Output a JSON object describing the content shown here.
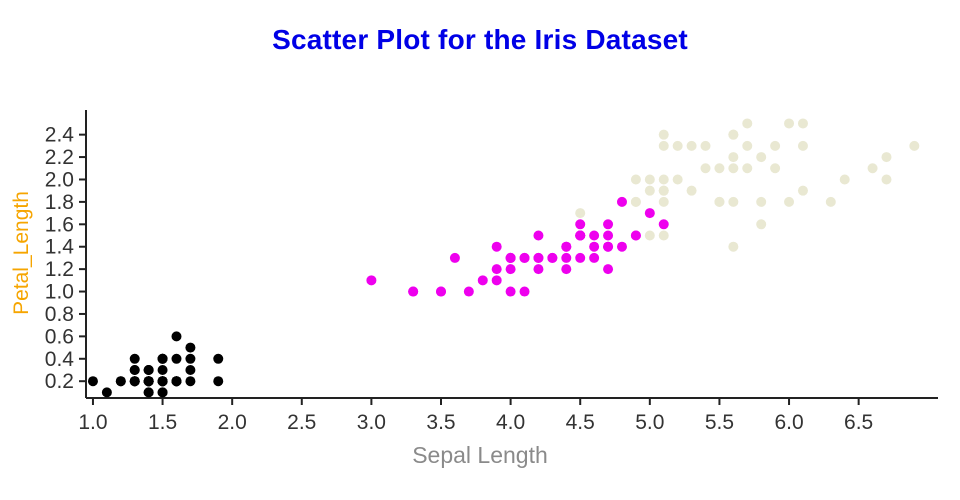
{
  "colors": {
    "title": "#0000e6",
    "x_label": "#8a8a8a",
    "y_label": "#f6a500",
    "axis": "#222222",
    "tick_text": "#333333",
    "background": "#ffffff"
  },
  "chart_data": {
    "type": "scatter",
    "title": "Scatter Plot for the Iris Dataset",
    "xlabel": "Sepal Length",
    "ylabel": "Petal_Length",
    "xlim": [
      0.95,
      7.07
    ],
    "ylim": [
      0.05,
      2.62
    ],
    "x_ticks": [
      1.0,
      1.5,
      2.0,
      2.5,
      3.0,
      3.5,
      4.0,
      4.5,
      5.0,
      5.5,
      6.0,
      6.5
    ],
    "y_ticks": [
      0.2,
      0.4,
      0.6,
      0.8,
      1.0,
      1.2,
      1.4,
      1.6,
      1.8,
      2.0,
      2.2,
      2.4
    ],
    "grid": false,
    "legend": "none",
    "marker_radius": 5,
    "series": [
      {
        "name": "cluster-pale-yellow",
        "color": "#e9e8d2",
        "points": [
          [
            6.0,
            2.5
          ],
          [
            5.1,
            1.9
          ],
          [
            5.9,
            2.1
          ],
          [
            5.6,
            1.8
          ],
          [
            5.8,
            2.2
          ],
          [
            6.6,
            2.1
          ],
          [
            4.5,
            1.7
          ],
          [
            6.3,
            1.8
          ],
          [
            5.8,
            1.8
          ],
          [
            6.1,
            2.5
          ],
          [
            5.1,
            2.0
          ],
          [
            5.3,
            1.9
          ],
          [
            5.5,
            2.1
          ],
          [
            5.0,
            2.0
          ],
          [
            5.1,
            2.4
          ],
          [
            5.3,
            2.3
          ],
          [
            5.5,
            1.8
          ],
          [
            6.7,
            2.2
          ],
          [
            6.9,
            2.3
          ],
          [
            5.0,
            1.5
          ],
          [
            5.7,
            2.3
          ],
          [
            4.9,
            2.0
          ],
          [
            6.7,
            2.0
          ],
          [
            4.9,
            1.8
          ],
          [
            5.7,
            2.1
          ],
          [
            6.0,
            1.8
          ],
          [
            4.8,
            1.8
          ],
          [
            4.9,
            1.8
          ],
          [
            5.6,
            2.1
          ],
          [
            5.8,
            1.6
          ],
          [
            6.1,
            1.9
          ],
          [
            6.4,
            2.0
          ],
          [
            5.6,
            2.2
          ],
          [
            5.1,
            1.5
          ],
          [
            5.6,
            1.4
          ],
          [
            6.1,
            2.3
          ],
          [
            5.6,
            2.4
          ],
          [
            5.5,
            1.8
          ],
          [
            4.8,
            1.8
          ],
          [
            5.4,
            2.1
          ],
          [
            5.6,
            2.4
          ],
          [
            5.1,
            2.3
          ],
          [
            5.1,
            1.9
          ],
          [
            5.9,
            2.3
          ],
          [
            5.7,
            2.5
          ],
          [
            5.2,
            2.3
          ],
          [
            5.0,
            1.9
          ],
          [
            5.2,
            2.0
          ],
          [
            5.4,
            2.3
          ],
          [
            5.1,
            1.8
          ]
        ]
      },
      {
        "name": "cluster-magenta",
        "color": "#ee00ee",
        "points": [
          [
            4.7,
            1.4
          ],
          [
            4.5,
            1.5
          ],
          [
            4.9,
            1.5
          ],
          [
            4.0,
            1.3
          ],
          [
            4.6,
            1.5
          ],
          [
            4.5,
            1.3
          ],
          [
            4.7,
            1.6
          ],
          [
            3.3,
            1.0
          ],
          [
            4.6,
            1.3
          ],
          [
            3.9,
            1.4
          ],
          [
            3.5,
            1.0
          ],
          [
            4.2,
            1.5
          ],
          [
            4.0,
            1.0
          ],
          [
            4.7,
            1.4
          ],
          [
            3.6,
            1.3
          ],
          [
            4.4,
            1.4
          ],
          [
            4.5,
            1.5
          ],
          [
            4.1,
            1.0
          ],
          [
            4.5,
            1.5
          ],
          [
            3.9,
            1.1
          ],
          [
            4.8,
            1.8
          ],
          [
            4.0,
            1.3
          ],
          [
            4.9,
            1.5
          ],
          [
            4.7,
            1.2
          ],
          [
            4.3,
            1.3
          ],
          [
            4.4,
            1.4
          ],
          [
            4.8,
            1.4
          ],
          [
            5.0,
            1.7
          ],
          [
            4.5,
            1.5
          ],
          [
            3.5,
            1.0
          ],
          [
            3.8,
            1.1
          ],
          [
            3.7,
            1.0
          ],
          [
            3.9,
            1.2
          ],
          [
            5.1,
            1.6
          ],
          [
            4.5,
            1.5
          ],
          [
            4.5,
            1.6
          ],
          [
            4.7,
            1.5
          ],
          [
            4.4,
            1.3
          ],
          [
            4.1,
            1.3
          ],
          [
            4.0,
            1.3
          ],
          [
            4.4,
            1.2
          ],
          [
            4.6,
            1.4
          ],
          [
            4.0,
            1.2
          ],
          [
            3.3,
            1.0
          ],
          [
            4.2,
            1.3
          ],
          [
            4.2,
            1.2
          ],
          [
            4.2,
            1.3
          ],
          [
            4.3,
            1.3
          ],
          [
            3.0,
            1.1
          ],
          [
            4.1,
            1.3
          ]
        ]
      },
      {
        "name": "cluster-black",
        "color": "#000000",
        "points": [
          [
            1.4,
            0.2
          ],
          [
            1.4,
            0.2
          ],
          [
            1.3,
            0.2
          ],
          [
            1.5,
            0.2
          ],
          [
            1.4,
            0.2
          ],
          [
            1.7,
            0.4
          ],
          [
            1.4,
            0.3
          ],
          [
            1.5,
            0.2
          ],
          [
            1.4,
            0.2
          ],
          [
            1.5,
            0.1
          ],
          [
            1.5,
            0.2
          ],
          [
            1.6,
            0.2
          ],
          [
            1.4,
            0.1
          ],
          [
            1.1,
            0.1
          ],
          [
            1.2,
            0.2
          ],
          [
            1.5,
            0.4
          ],
          [
            1.3,
            0.4
          ],
          [
            1.4,
            0.3
          ],
          [
            1.7,
            0.3
          ],
          [
            1.5,
            0.3
          ],
          [
            1.7,
            0.2
          ],
          [
            1.5,
            0.4
          ],
          [
            1.0,
            0.2
          ],
          [
            1.7,
            0.5
          ],
          [
            1.9,
            0.2
          ],
          [
            1.6,
            0.2
          ],
          [
            1.6,
            0.4
          ],
          [
            1.5,
            0.2
          ],
          [
            1.4,
            0.2
          ],
          [
            1.6,
            0.2
          ],
          [
            1.6,
            0.2
          ],
          [
            1.5,
            0.4
          ],
          [
            1.5,
            0.1
          ],
          [
            1.4,
            0.2
          ],
          [
            1.5,
            0.2
          ],
          [
            1.2,
            0.2
          ],
          [
            1.3,
            0.2
          ],
          [
            1.4,
            0.1
          ],
          [
            1.3,
            0.2
          ],
          [
            1.5,
            0.2
          ],
          [
            1.3,
            0.3
          ],
          [
            1.3,
            0.3
          ],
          [
            1.3,
            0.2
          ],
          [
            1.6,
            0.6
          ],
          [
            1.9,
            0.4
          ],
          [
            1.4,
            0.3
          ],
          [
            1.6,
            0.2
          ],
          [
            1.4,
            0.2
          ],
          [
            1.5,
            0.2
          ],
          [
            1.4,
            0.2
          ]
        ]
      }
    ]
  }
}
